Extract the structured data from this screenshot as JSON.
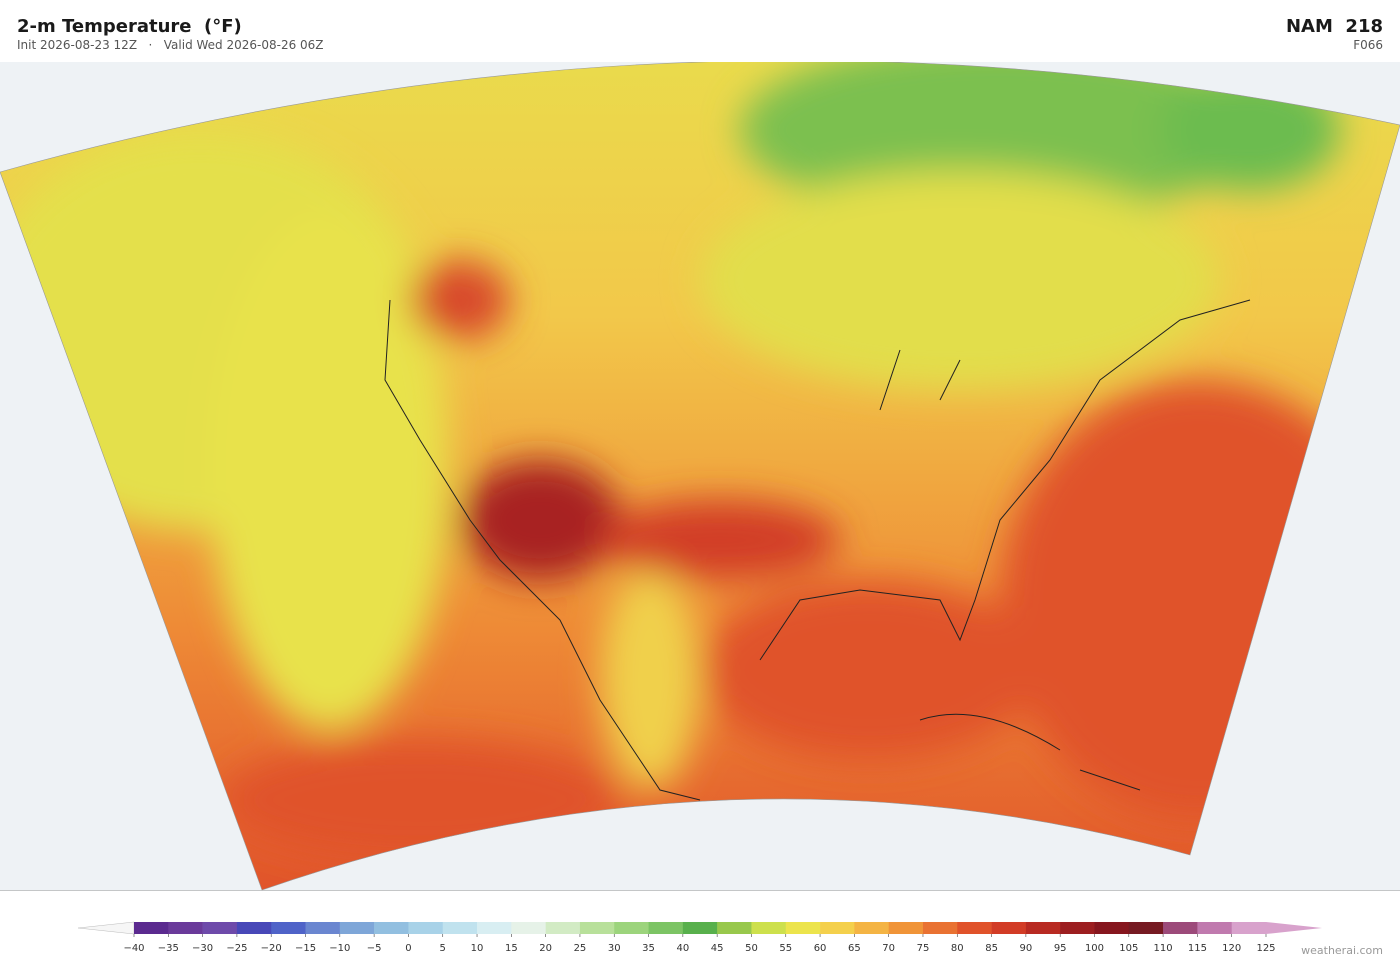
{
  "header": {
    "title": "2-m Temperature  (°F)",
    "init": "Init 2026-08-23 12Z",
    "separator": "·",
    "valid": "Valid Wed 2026-08-26 06Z",
    "model": "NAM  218",
    "forecast_hour": "F066"
  },
  "colorbar": {
    "ticks": [
      {
        "value": -40,
        "label": "−40"
      },
      {
        "value": -35,
        "label": "−35"
      },
      {
        "value": -30,
        "label": "−30"
      },
      {
        "value": -25,
        "label": "−25"
      },
      {
        "value": -20,
        "label": "−20"
      },
      {
        "value": -15,
        "label": "−15"
      },
      {
        "value": -10,
        "label": "−10"
      },
      {
        "value": -5,
        "label": "−5"
      },
      0,
      5,
      10,
      15,
      20,
      25,
      30,
      35,
      40,
      45,
      50,
      55,
      60,
      65,
      70,
      75,
      80,
      85,
      90,
      95,
      100,
      105,
      110,
      115,
      120,
      125
    ],
    "colors": [
      "#5b2a8f",
      "#6a3a9a",
      "#6e4aaa",
      "#4848b8",
      "#4f63c8",
      "#6a86d0",
      "#7ea6d8",
      "#92bfe0",
      "#a8d2e8",
      "#c0e2ee",
      "#d8eef2",
      "#e6f2e8",
      "#d2ebc4",
      "#b8e09a",
      "#9cd47c",
      "#7cc464",
      "#58b04c",
      "#98c84c",
      "#cde04c",
      "#ece44c",
      "#f4d04c",
      "#f4b444",
      "#f09438",
      "#e97232",
      "#e0522a",
      "#d23c26",
      "#b82a22",
      "#9c1e20",
      "#86161e",
      "#761a22",
      "#9c4a7a",
      "#c07aae",
      "#d8a2cc"
    ],
    "under_color": "#f6f6f6",
    "over_color": "#d8a2cc"
  },
  "footer": {
    "credit": "weatherai.com"
  }
}
